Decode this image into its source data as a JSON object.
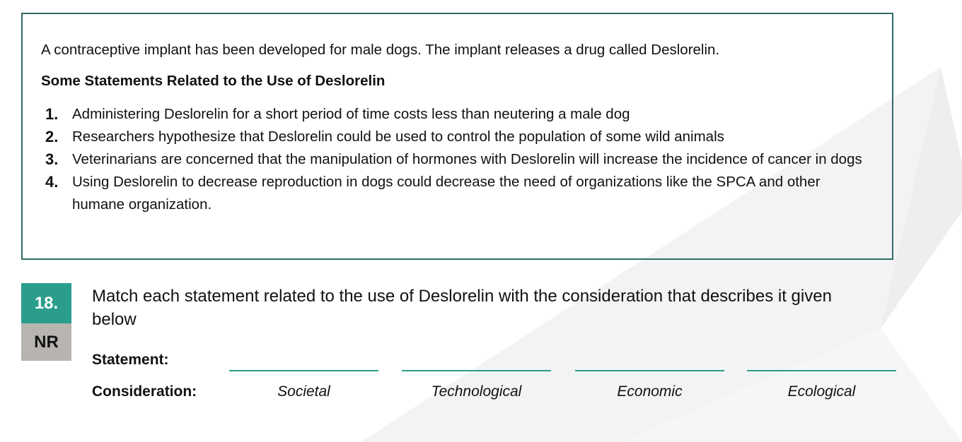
{
  "info_box": {
    "intro": "A contraceptive implant has been developed for male dogs. The implant releases a drug called Deslorelin.",
    "heading": "Some Statements Related to the Use of Deslorelin",
    "statements": [
      {
        "number": "1.",
        "text": "Administering Deslorelin for a short period of time costs less than neutering a male dog"
      },
      {
        "number": "2.",
        "text": "Researchers hypothesize that Deslorelin could be used to control the population of some wild animals"
      },
      {
        "number": "3.",
        "text": "Veterinarians are concerned that the manipulation of hormones with Deslorelin will increase the incidence of cancer in dogs"
      },
      {
        "number": "4.",
        "text": "Using Deslorelin to decrease reproduction in dogs could decrease the need of organizations like the SPCA and other humane organization."
      }
    ]
  },
  "question": {
    "number": "18.",
    "type": "NR",
    "text": "Match each statement related to the use of Deslorelin with the consideration that describes it given below",
    "statement_label": "Statement:",
    "consideration_label": "Consideration:",
    "considerations": [
      "Societal",
      "Technological",
      "Economic",
      "Ecological"
    ]
  },
  "colors": {
    "box_border": "#2f6b65",
    "accent_teal": "#2a9d8c",
    "badge_gray": "#b8b5b1",
    "watermark": "#f1f1f1"
  }
}
